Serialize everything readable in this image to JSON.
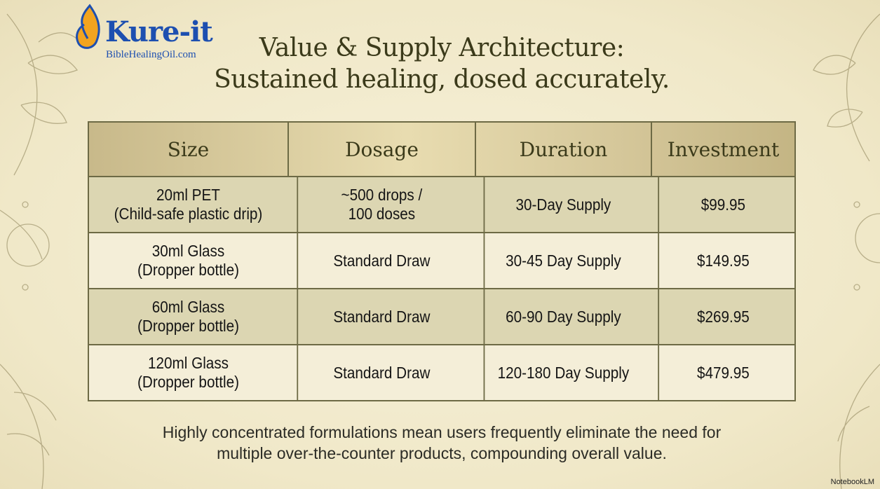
{
  "logo": {
    "name": "Kure-it",
    "site": "BibleHealingOil.com"
  },
  "header": {
    "title": [
      "Value & Supply Architecture:",
      "Sustained healing, dosed accurately."
    ]
  },
  "table": {
    "columns": [
      "Size",
      "Dosage",
      "Duration",
      "Investment"
    ],
    "rows": [
      [
        [
          "20ml PET",
          "(Child-safe plastic drip)"
        ],
        [
          "~500 drops /",
          "100 doses"
        ],
        [
          "30-Day Supply"
        ],
        [
          "$99.95"
        ]
      ],
      [
        [
          "30ml Glass",
          "(Dropper bottle)"
        ],
        [
          "Standard Draw"
        ],
        [
          "30-45 Day Supply"
        ],
        [
          "$149.95"
        ]
      ],
      [
        [
          "60ml Glass",
          "(Dropper bottle)"
        ],
        [
          "Standard Draw"
        ],
        [
          "60-90 Day Supply"
        ],
        [
          "$269.95"
        ]
      ],
      [
        [
          "120ml Glass",
          "(Dropper bottle)"
        ],
        [
          "Standard Draw"
        ],
        [
          "120-180 Day Supply"
        ],
        [
          "$479.95"
        ]
      ]
    ]
  },
  "footer": {
    "text": [
      "Highly concentrated formulations mean users frequently eliminate the need for",
      "multiple over-the-counter products, compounding overall value."
    ]
  },
  "watermark": "NotebookLM"
}
